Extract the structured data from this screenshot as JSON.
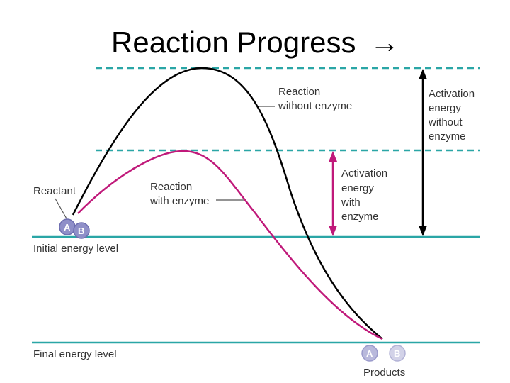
{
  "title": "Reaction Progress",
  "title_arrow": "→",
  "labels": {
    "reactant": "Reactant",
    "initial_energy": "Initial energy level",
    "final_energy": "Final energy level",
    "products": "Products",
    "without_enzyme_line1": "Reaction",
    "without_enzyme_line2": "without enzyme",
    "with_enzyme_line1": "Reaction",
    "with_enzyme_line2": "with enzyme",
    "act_without_1": "Activation",
    "act_without_2": "energy",
    "act_without_3": "without",
    "act_without_4": "enzyme",
    "act_with_1": "Activation",
    "act_with_2": "energy",
    "act_with_3": "with",
    "act_with_4": "enzyme"
  },
  "molecules": {
    "a": "A",
    "b": "B"
  },
  "colors": {
    "no_enzyme_curve": "#000000",
    "enzyme_curve": "#c0197a",
    "energy_lines": "#2aa6a6",
    "molecule": "#8f8fc8"
  }
}
